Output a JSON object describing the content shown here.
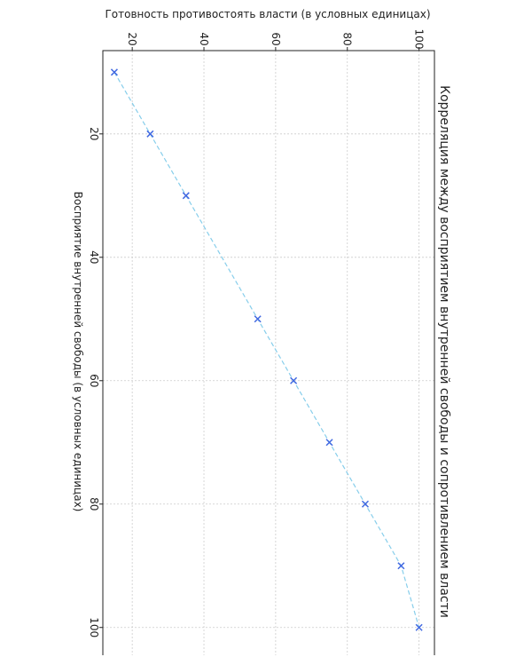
{
  "chart_data": {
    "type": "line",
    "title": "Корреляция между восприятием внутренней свободы и сопротивлением власти",
    "xlabel": "Восприятие внутренней свободы (в условных единицах)",
    "ylabel": "Готовность противостоять власти (в условных единицах)",
    "x": [
      10,
      20,
      30,
      50,
      60,
      70,
      80,
      90,
      100
    ],
    "y": [
      15,
      25,
      35,
      55,
      65,
      75,
      85,
      95,
      100
    ],
    "x_ticks": [
      20,
      40,
      60,
      80,
      100
    ],
    "y_ticks": [
      20,
      40,
      60,
      80,
      100
    ],
    "xlim": [
      6.5,
      104.5
    ],
    "ylim": [
      11.8,
      104.3
    ],
    "orientation": "rotated-90-clockwise",
    "grid": true,
    "marker": "x",
    "line_style": "dashed",
    "colors": {
      "line": "#87ceeb",
      "marker": "#4169e1",
      "grid": "#cccccc",
      "axis": "#222222"
    }
  }
}
